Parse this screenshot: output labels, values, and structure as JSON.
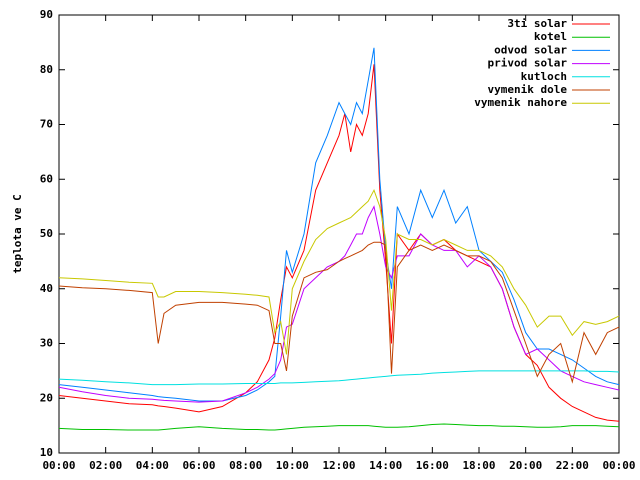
{
  "chart_data": {
    "type": "line",
    "ylabel": "teplota ve C",
    "x": [
      0,
      1,
      2,
      3,
      4,
      4.25,
      4.5,
      5,
      6,
      7,
      8,
      8.5,
      9,
      9.25,
      9.5,
      9.75,
      10,
      10.5,
      11,
      11.5,
      12,
      12.25,
      12.5,
      12.75,
      13,
      13.25,
      13.5,
      13.75,
      14,
      14.25,
      14.5,
      15,
      15.5,
      16,
      16.5,
      17,
      17.5,
      18,
      18.5,
      19,
      19.5,
      20,
      20.5,
      21,
      21.5,
      22,
      22.5,
      23,
      23.5,
      24
    ],
    "xlim": [
      0,
      24
    ],
    "xticks": [
      {
        "value": 0,
        "label": "00:00"
      },
      {
        "value": 2,
        "label": "02:00"
      },
      {
        "value": 4,
        "label": "04:00"
      },
      {
        "value": 6,
        "label": "06:00"
      },
      {
        "value": 8,
        "label": "08:00"
      },
      {
        "value": 10,
        "label": "10:00"
      },
      {
        "value": 12,
        "label": "12:00"
      },
      {
        "value": 14,
        "label": "14:00"
      },
      {
        "value": 16,
        "label": "16:00"
      },
      {
        "value": 18,
        "label": "18:00"
      },
      {
        "value": 20,
        "label": "20:00"
      },
      {
        "value": 22,
        "label": "22:00"
      },
      {
        "value": 24,
        "label": "00:00"
      }
    ],
    "ylim": [
      10,
      90
    ],
    "yticks": [
      10,
      20,
      30,
      40,
      50,
      60,
      70,
      80,
      90
    ],
    "legend": "top-right",
    "series": [
      {
        "name": "3ti solar",
        "color": "#ff0000",
        "values": [
          20.5,
          20,
          19.5,
          19,
          18.8,
          18.6,
          18.5,
          18.2,
          17.5,
          18.5,
          21,
          23,
          27,
          31,
          38,
          44,
          42,
          47,
          58,
          63,
          68,
          72,
          65,
          70,
          68,
          72,
          81,
          58,
          45,
          30,
          50,
          47,
          50,
          48,
          49,
          47,
          46,
          45,
          44,
          40,
          33,
          28,
          26,
          22,
          20,
          18.5,
          17.5,
          16.5,
          16,
          15.8
        ]
      },
      {
        "name": "kotel",
        "color": "#00c000",
        "values": [
          14.5,
          14.3,
          14.3,
          14.2,
          14.2,
          14.2,
          14.3,
          14.5,
          14.8,
          14.5,
          14.3,
          14.3,
          14.2,
          14.2,
          14.3,
          14.4,
          14.5,
          14.7,
          14.8,
          14.9,
          15,
          15,
          15,
          15,
          15,
          15,
          14.9,
          14.8,
          14.7,
          14.7,
          14.7,
          14.8,
          15,
          15.2,
          15.3,
          15.2,
          15.1,
          15,
          15,
          14.9,
          14.9,
          14.8,
          14.7,
          14.7,
          14.8,
          15,
          15,
          15,
          14.9,
          14.8
        ]
      },
      {
        "name": "odvod solar",
        "color": "#0080ff",
        "values": [
          22.5,
          22,
          21.5,
          21,
          20.5,
          20.3,
          20.2,
          20,
          19.5,
          19.5,
          20.5,
          21.5,
          23,
          24,
          35,
          47,
          43,
          50,
          63,
          68,
          74,
          72,
          70,
          74,
          72,
          78,
          84,
          60,
          47,
          40,
          55,
          50,
          58,
          53,
          58,
          52,
          55,
          47,
          45,
          43,
          38,
          32,
          29,
          29,
          28,
          27,
          25.5,
          24,
          23,
          22.5
        ]
      },
      {
        "name": "privod solar",
        "color": "#c000ff",
        "values": [
          22,
          21.2,
          20.5,
          20,
          19.8,
          19.7,
          19.6,
          19.5,
          19.3,
          19.5,
          21,
          22,
          23.5,
          24.5,
          27,
          33,
          33.5,
          40,
          42,
          44,
          45,
          46,
          48,
          50,
          50,
          53,
          55,
          50,
          44,
          42,
          46,
          46,
          50,
          48,
          47,
          47,
          44,
          46,
          44,
          40,
          33,
          28,
          29,
          27,
          25,
          24,
          23,
          22.5,
          22,
          21.5
        ]
      },
      {
        "name": "kutloch",
        "color": "#00e0e0",
        "values": [
          23.5,
          23.3,
          23,
          22.8,
          22.5,
          22.5,
          22.5,
          22.5,
          22.6,
          22.6,
          22.7,
          22.7,
          22.7,
          22.7,
          22.8,
          22.8,
          22.8,
          22.9,
          23,
          23.1,
          23.2,
          23.3,
          23.4,
          23.5,
          23.6,
          23.7,
          23.8,
          23.9,
          24,
          24.1,
          24.2,
          24.3,
          24.4,
          24.6,
          24.7,
          24.8,
          24.9,
          25,
          25,
          25,
          25,
          25,
          25,
          25,
          25,
          25,
          25,
          24.9,
          24.9,
          24.8
        ]
      },
      {
        "name": "vymenik dole",
        "color": "#c04000",
        "values": [
          40.5,
          40.2,
          40,
          39.7,
          39.3,
          30,
          35.5,
          37,
          37.5,
          37.5,
          37.2,
          37,
          36,
          30,
          30,
          25,
          35,
          42,
          43,
          43.5,
          45,
          45.5,
          46,
          46.5,
          47,
          48,
          48.5,
          48.5,
          48,
          24.5,
          44,
          47,
          48,
          47,
          48,
          47,
          46,
          46,
          45,
          42,
          36,
          30,
          24,
          28,
          30,
          23,
          32,
          28,
          32,
          33
        ]
      },
      {
        "name": "vymenik nahore",
        "color": "#c8c800",
        "values": [
          42,
          41.8,
          41.5,
          41.2,
          41,
          38.5,
          38.5,
          39.5,
          39.5,
          39.3,
          39,
          38.8,
          38.5,
          32,
          34,
          28,
          40,
          45,
          49,
          51,
          52,
          52.5,
          53,
          54,
          55,
          56,
          58,
          55,
          49,
          36,
          50,
          49,
          49,
          48,
          49,
          48,
          47,
          47,
          46,
          44,
          40,
          37,
          33,
          35,
          35,
          31.5,
          34,
          33.5,
          34,
          35
        ]
      }
    ]
  }
}
